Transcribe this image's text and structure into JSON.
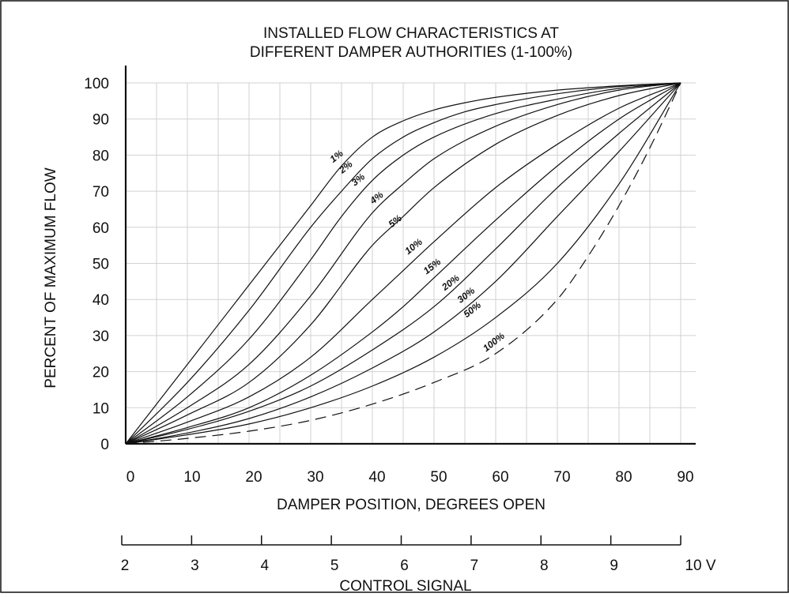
{
  "chart_data": {
    "type": "line",
    "title": [
      "INSTALLED FLOW CHARACTERISTICS AT",
      "DIFFERENT DAMPER AUTHORITIES (1-100%)"
    ],
    "xlabel": "DAMPER POSITION, DEGREES OPEN",
    "ylabel": "PERCENT OF MAXIMUM FLOW",
    "x2label": "CONTROL SIGNAL",
    "xlim": [
      0,
      90
    ],
    "ylim": [
      0,
      100
    ],
    "x_ticks": [
      0,
      10,
      20,
      30,
      40,
      50,
      60,
      70,
      80,
      90
    ],
    "y_ticks": [
      0,
      10,
      20,
      30,
      40,
      50,
      60,
      70,
      80,
      90,
      100
    ],
    "x2_ticks": [
      "2",
      "3",
      "4",
      "5",
      "6",
      "7",
      "8",
      "9",
      "10 V"
    ],
    "grid": true,
    "series": [
      {
        "name": "1%",
        "dash": false,
        "x": [
          0,
          10,
          20,
          30,
          35,
          40,
          45,
          50,
          55,
          60,
          70,
          80,
          90
        ],
        "y": [
          0,
          22,
          44,
          66,
          77,
          85,
          89.5,
          92.5,
          94.5,
          96,
          98,
          99.2,
          100
        ]
      },
      {
        "name": "2%",
        "dash": false,
        "x": [
          0,
          10,
          20,
          30,
          35,
          40,
          45,
          50,
          55,
          60,
          70,
          80,
          90
        ],
        "y": [
          0,
          17,
          37,
          60,
          70,
          79,
          85,
          89,
          92,
          94,
          97,
          99,
          100
        ]
      },
      {
        "name": "3%",
        "dash": false,
        "x": [
          0,
          10,
          20,
          30,
          35,
          40,
          45,
          50,
          60,
          70,
          80,
          90
        ],
        "y": [
          0,
          13,
          29,
          51,
          63,
          73,
          80,
          85,
          91.5,
          95.5,
          98.5,
          100
        ]
      },
      {
        "name": "4%",
        "dash": false,
        "x": [
          0,
          10,
          20,
          30,
          40,
          45,
          50,
          60,
          70,
          80,
          90
        ],
        "y": [
          0,
          10,
          22,
          41,
          64,
          72,
          79,
          88,
          94,
          98,
          100
        ]
      },
      {
        "name": "5%",
        "dash": false,
        "x": [
          0,
          10,
          20,
          30,
          40,
          45,
          50,
          60,
          70,
          80,
          90
        ],
        "y": [
          0,
          8,
          17,
          33,
          55,
          63,
          71,
          83,
          91,
          96.5,
          100
        ]
      },
      {
        "name": "10%",
        "dash": false,
        "x": [
          0,
          10,
          20,
          30,
          40,
          45,
          50,
          60,
          70,
          80,
          90
        ],
        "y": [
          0,
          6,
          13,
          24,
          40,
          48,
          56,
          71,
          83,
          93,
          100
        ]
      },
      {
        "name": "15%",
        "dash": false,
        "x": [
          0,
          10,
          20,
          30,
          40,
          45,
          50,
          60,
          70,
          80,
          90
        ],
        "y": [
          0,
          4.5,
          10,
          19,
          31,
          38,
          46,
          62,
          77,
          90,
          100
        ]
      },
      {
        "name": "20%",
        "dash": false,
        "x": [
          0,
          10,
          20,
          30,
          40,
          50,
          60,
          70,
          80,
          90
        ],
        "y": [
          0,
          4,
          9,
          16,
          26,
          38,
          54,
          71,
          86,
          100
        ]
      },
      {
        "name": "30%",
        "dash": false,
        "x": [
          0,
          10,
          20,
          30,
          40,
          50,
          60,
          70,
          80,
          90
        ],
        "y": [
          0,
          3,
          7,
          13,
          21,
          31,
          45,
          63,
          81,
          100
        ]
      },
      {
        "name": "50%",
        "dash": false,
        "x": [
          0,
          10,
          20,
          30,
          40,
          50,
          60,
          70,
          80,
          90
        ],
        "y": [
          0,
          2.5,
          5.5,
          10,
          16,
          24,
          35,
          50,
          72,
          100
        ]
      },
      {
        "name": "100%",
        "dash": true,
        "x": [
          0,
          10,
          20,
          30,
          40,
          50,
          60,
          70,
          75,
          80,
          85,
          90
        ],
        "y": [
          0,
          1.5,
          3.5,
          6.5,
          11,
          17,
          25,
          40,
          52,
          66,
          82,
          100
        ]
      }
    ],
    "curve_labels": [
      {
        "text": "1%",
        "x": 34.5,
        "y": 79
      },
      {
        "text": "2%",
        "x": 36,
        "y": 76
      },
      {
        "text": "3%",
        "x": 38,
        "y": 72.5
      },
      {
        "text": "4%",
        "x": 41,
        "y": 67.5
      },
      {
        "text": "5%",
        "x": 44,
        "y": 61
      },
      {
        "text": "10%",
        "x": 47,
        "y": 54
      },
      {
        "text": "15%",
        "x": 50,
        "y": 48.5
      },
      {
        "text": "20%",
        "x": 53,
        "y": 44
      },
      {
        "text": "30%",
        "x": 55.5,
        "y": 40.5
      },
      {
        "text": "50%",
        "x": 56.5,
        "y": 36.5
      },
      {
        "text": "100%",
        "x": 60,
        "y": 27.5
      }
    ]
  }
}
